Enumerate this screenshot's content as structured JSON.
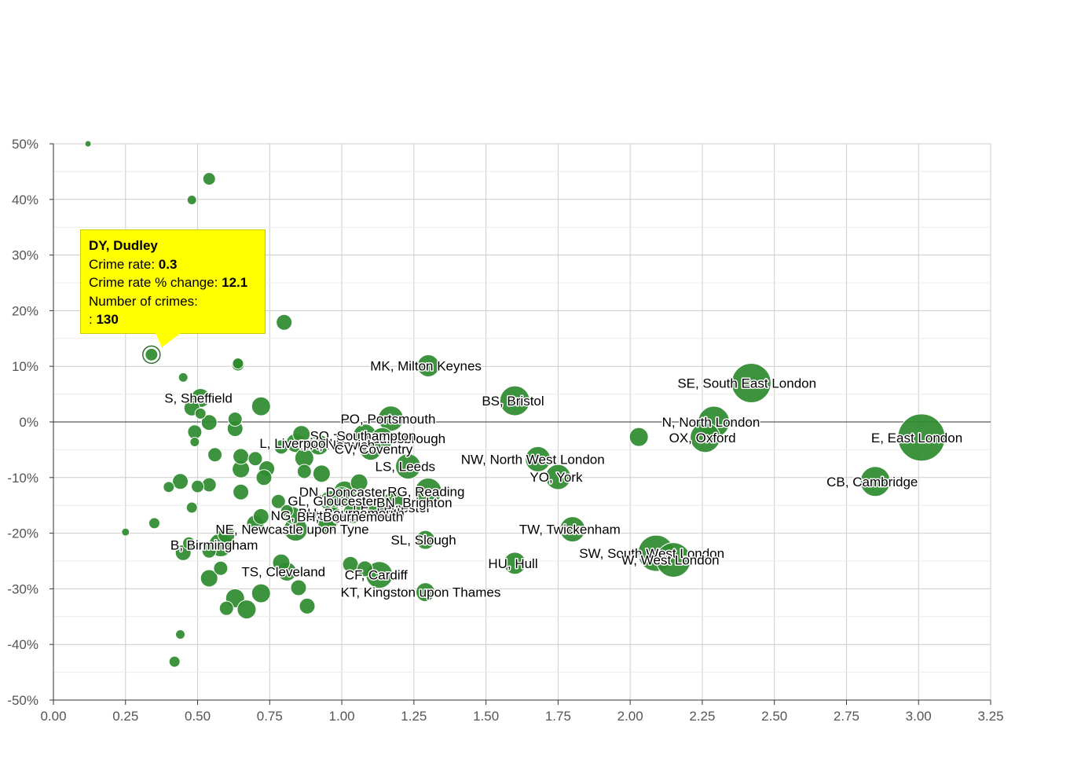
{
  "chart_data": {
    "type": "scatter",
    "title": "",
    "xlabel": "",
    "ylabel": "",
    "xlim": [
      0,
      3.25
    ],
    "ylim": [
      -50,
      50
    ],
    "x_ticks": [
      "0.00",
      "0.25",
      "0.50",
      "0.75",
      "1.00",
      "1.25",
      "1.50",
      "1.75",
      "2.00",
      "2.25",
      "2.50",
      "2.75",
      "3.00",
      "3.25"
    ],
    "y_ticks": [
      "50%",
      "40%",
      "30%",
      "20%",
      "10%",
      "0%",
      "-10%",
      "-20%",
      "-30%",
      "-40%",
      "-50%"
    ],
    "x_tick_values": [
      0,
      0.25,
      0.5,
      0.75,
      1,
      1.25,
      1.5,
      1.75,
      2,
      2.25,
      2.5,
      2.75,
      3,
      3.25
    ],
    "y_tick_values": [
      50,
      40,
      30,
      20,
      10,
      0,
      -10,
      -20,
      -30,
      -40,
      -50
    ],
    "grid": true,
    "point_color": "#2e8b2e",
    "tooltip_color": "#ffff00",
    "points": [
      {
        "x": 3.01,
        "y": -2.8,
        "s": 30,
        "label": "E, East London"
      },
      {
        "x": 2.42,
        "y": 7.0,
        "s": 25,
        "label": "SE, South East London"
      },
      {
        "x": 2.29,
        "y": 0.0,
        "s": 20,
        "label": "N, North London"
      },
      {
        "x": 2.26,
        "y": -2.8,
        "s": 19,
        "label": "OX, Oxford"
      },
      {
        "x": 2.85,
        "y": -10.7,
        "s": 19,
        "label": "CB, Cambridge"
      },
      {
        "x": 2.09,
        "y": -23.6,
        "s": 23,
        "label": "SW, South West London"
      },
      {
        "x": 2.15,
        "y": -24.8,
        "s": 22,
        "label": "W, West London"
      },
      {
        "x": 2.03,
        "y": -2.7,
        "s": 12,
        "label": ""
      },
      {
        "x": 1.6,
        "y": 3.8,
        "s": 19,
        "label": "BS, Bristol"
      },
      {
        "x": 1.68,
        "y": -6.7,
        "s": 16,
        "label": "NW, North West London"
      },
      {
        "x": 1.75,
        "y": -9.9,
        "s": 16,
        "label": "YO, York"
      },
      {
        "x": 1.8,
        "y": -19.3,
        "s": 16,
        "label": "TW, Twickenham"
      },
      {
        "x": 1.6,
        "y": -25.4,
        "s": 14,
        "label": "HU, Hull"
      },
      {
        "x": 1.3,
        "y": 10.1,
        "s": 14,
        "label": "MK, Milton Keynes"
      },
      {
        "x": 1.17,
        "y": 0.6,
        "s": 16,
        "label": "PO, Portsmouth"
      },
      {
        "x": 1.3,
        "y": -12.5,
        "s": 17,
        "label": "RG, Reading"
      },
      {
        "x": 1.23,
        "y": -8.0,
        "s": 16,
        "label": "LS, Leeds"
      },
      {
        "x": 1.18,
        "y": -14.5,
        "s": 14,
        "label": "BN, Brighton"
      },
      {
        "x": 1.08,
        "y": -2.5,
        "s": 15,
        "label": "SO, Southampton"
      },
      {
        "x": 1.14,
        "y": -3.0,
        "s": 14,
        "label": "TS, Middlesbrough"
      },
      {
        "x": 1.1,
        "y": -4.9,
        "s": 14,
        "label": "CV, Coventry"
      },
      {
        "x": 1.29,
        "y": -21.2,
        "s": 12,
        "label": "SL, Slough"
      },
      {
        "x": 1.13,
        "y": -27.5,
        "s": 17,
        "label": "CF, Cardiff"
      },
      {
        "x": 1.29,
        "y": -30.6,
        "s": 12,
        "label": "KT, Kingston upon Thames"
      },
      {
        "x": 1.01,
        "y": -12.6,
        "s": 14,
        "label": "DN, Doncaster"
      },
      {
        "x": 1.06,
        "y": -10.9,
        "s": 11,
        "label": ""
      },
      {
        "x": 1.0,
        "y": -13.5,
        "s": 13,
        "label": ""
      },
      {
        "x": 1.12,
        "y": -15.4,
        "s": 13,
        "label": "LE, Leicester"
      },
      {
        "x": 0.96,
        "y": -14.2,
        "s": 13,
        "label": "GL, Gloucester"
      },
      {
        "x": 1.04,
        "y": -16.4,
        "s": 13,
        "label": "BH, Bournemouth"
      },
      {
        "x": 0.97,
        "y": -17.0,
        "s": 12,
        "label": "BH, Bournemouth"
      },
      {
        "x": 0.95,
        "y": -18.2,
        "s": 12,
        "label": ""
      },
      {
        "x": 0.84,
        "y": -19.3,
        "s": 15,
        "label": "NE, Newcastle upon Tyne"
      },
      {
        "x": 0.83,
        "y": -16.8,
        "s": 11,
        "label": "NG, Nottingham"
      },
      {
        "x": 0.92,
        "y": -4.1,
        "s": 13,
        "label": "NR, Norwich"
      },
      {
        "x": 0.86,
        "y": -2.2,
        "s": 11,
        "label": ""
      },
      {
        "x": 0.84,
        "y": -3.8,
        "s": 12,
        "label": "L, Liverpool"
      },
      {
        "x": 0.87,
        "y": -6.5,
        "s": 12,
        "label": ""
      },
      {
        "x": 0.93,
        "y": -9.3,
        "s": 11,
        "label": ""
      },
      {
        "x": 0.87,
        "y": -8.9,
        "s": 9,
        "label": ""
      },
      {
        "x": 0.79,
        "y": -4.5,
        "s": 9,
        "label": ""
      },
      {
        "x": 0.81,
        "y": -16.0,
        "s": 8,
        "label": ""
      },
      {
        "x": 0.78,
        "y": -14.3,
        "s": 9,
        "label": ""
      },
      {
        "x": 0.72,
        "y": 2.8,
        "s": 12,
        "label": ""
      },
      {
        "x": 0.8,
        "y": 17.9,
        "s": 10,
        "label": ""
      },
      {
        "x": 0.74,
        "y": -8.4,
        "s": 10,
        "label": ""
      },
      {
        "x": 0.73,
        "y": -10.0,
        "s": 10,
        "label": ""
      },
      {
        "x": 0.7,
        "y": -6.6,
        "s": 9,
        "label": ""
      },
      {
        "x": 0.65,
        "y": -6.2,
        "s": 10,
        "label": ""
      },
      {
        "x": 0.65,
        "y": -8.5,
        "s": 11,
        "label": ""
      },
      {
        "x": 0.65,
        "y": -12.6,
        "s": 10,
        "label": ""
      },
      {
        "x": 0.72,
        "y": -17.0,
        "s": 10,
        "label": ""
      },
      {
        "x": 0.7,
        "y": -18.3,
        "s": 11,
        "label": ""
      },
      {
        "x": 0.64,
        "y": 10.3,
        "s": 8,
        "label": ""
      },
      {
        "x": 0.64,
        "y": 10.5,
        "s": 7,
        "label": ""
      },
      {
        "x": 0.63,
        "y": 0.5,
        "s": 9,
        "label": ""
      },
      {
        "x": 0.63,
        "y": -1.2,
        "s": 10,
        "label": ""
      },
      {
        "x": 0.56,
        "y": -5.9,
        "s": 9,
        "label": ""
      },
      {
        "x": 0.54,
        "y": -0.1,
        "s": 10,
        "label": ""
      },
      {
        "x": 0.54,
        "y": 43.7,
        "s": 8,
        "label": ""
      },
      {
        "x": 0.48,
        "y": 39.9,
        "s": 6,
        "label": ""
      },
      {
        "x": 0.51,
        "y": 4.3,
        "s": 12,
        "label": "S, Sheffield"
      },
      {
        "x": 0.48,
        "y": 2.5,
        "s": 10,
        "label": ""
      },
      {
        "x": 0.51,
        "y": 1.5,
        "s": 7,
        "label": ""
      },
      {
        "x": 0.49,
        "y": -1.8,
        "s": 9,
        "label": ""
      },
      {
        "x": 0.49,
        "y": -3.6,
        "s": 6,
        "label": ""
      },
      {
        "x": 0.45,
        "y": 8.0,
        "s": 6,
        "label": ""
      },
      {
        "x": 0.54,
        "y": -11.3,
        "s": 9,
        "label": ""
      },
      {
        "x": 0.5,
        "y": -11.6,
        "s": 8,
        "label": ""
      },
      {
        "x": 0.44,
        "y": -10.7,
        "s": 10,
        "label": ""
      },
      {
        "x": 0.4,
        "y": -11.7,
        "s": 7,
        "label": ""
      },
      {
        "x": 0.48,
        "y": -15.4,
        "s": 7,
        "label": ""
      },
      {
        "x": 0.35,
        "y": -18.2,
        "s": 7,
        "label": ""
      },
      {
        "x": 0.25,
        "y": -19.8,
        "s": 5,
        "label": ""
      },
      {
        "x": 0.12,
        "y": 50.0,
        "s": 4,
        "label": ""
      },
      {
        "x": 0.34,
        "y": 12.1,
        "s": 8,
        "label": "",
        "highlight": true
      },
      {
        "x": 0.58,
        "y": -22.1,
        "s": 15,
        "label": "B, Birmingham"
      },
      {
        "x": 0.6,
        "y": -20.2,
        "s": 11,
        "label": ""
      },
      {
        "x": 0.54,
        "y": -23.2,
        "s": 9,
        "label": ""
      },
      {
        "x": 0.47,
        "y": -21.8,
        "s": 8,
        "label": ""
      },
      {
        "x": 0.45,
        "y": -23.5,
        "s": 10,
        "label": ""
      },
      {
        "x": 0.58,
        "y": -26.3,
        "s": 9,
        "label": ""
      },
      {
        "x": 0.54,
        "y": -28.1,
        "s": 11,
        "label": ""
      },
      {
        "x": 0.63,
        "y": -31.7,
        "s": 12,
        "label": ""
      },
      {
        "x": 0.6,
        "y": -33.5,
        "s": 9,
        "label": ""
      },
      {
        "x": 0.67,
        "y": -33.7,
        "s": 12,
        "label": ""
      },
      {
        "x": 0.72,
        "y": -30.8,
        "s": 12,
        "label": ""
      },
      {
        "x": 0.79,
        "y": -25.3,
        "s": 11,
        "label": ""
      },
      {
        "x": 0.81,
        "y": -26.9,
        "s": 12,
        "label": "TS, Cleveland"
      },
      {
        "x": 0.85,
        "y": -29.8,
        "s": 10,
        "label": ""
      },
      {
        "x": 0.88,
        "y": -33.1,
        "s": 10,
        "label": ""
      },
      {
        "x": 1.03,
        "y": -25.6,
        "s": 10,
        "label": ""
      },
      {
        "x": 1.08,
        "y": -26.4,
        "s": 10,
        "label": ""
      },
      {
        "x": 0.44,
        "y": -38.2,
        "s": 6,
        "label": ""
      },
      {
        "x": 0.42,
        "y": -43.1,
        "s": 7,
        "label": ""
      }
    ],
    "labels": [
      {
        "x": 1.3,
        "y": 10.1,
        "text": "MK, Milton Keynes",
        "dx": -74
      },
      {
        "x": 2.42,
        "y": 7.0,
        "text": "SE, South East London",
        "dx": -94
      },
      {
        "x": 1.6,
        "y": 3.8,
        "text": "BS, Bristol",
        "dx": -42
      },
      {
        "x": 0.51,
        "y": 4.3,
        "text": "S, Sheffield",
        "dx": -46
      },
      {
        "x": 1.17,
        "y": 0.6,
        "text": "PO, Portsmouth",
        "dx": -64
      },
      {
        "x": 2.29,
        "y": 0.0,
        "text": "N, North London",
        "dx": -66
      },
      {
        "x": 1.14,
        "y": -3.0,
        "text": "TS, Middlesbrough",
        "dx": -62
      },
      {
        "x": 1.08,
        "y": -2.5,
        "text": "SO, Southampton",
        "dx": -70
      },
      {
        "x": 3.01,
        "y": -2.8,
        "text": "E, East London",
        "dx": -64
      },
      {
        "x": 2.26,
        "y": -2.8,
        "text": "OX, Oxford",
        "dx": -46
      },
      {
        "x": 0.92,
        "y": -4.1,
        "text": "NR, Norwich",
        "dx": -24
      },
      {
        "x": 0.84,
        "y": -3.8,
        "text": "L, Liverpool",
        "dx": -46
      },
      {
        "x": 1.1,
        "y": -4.9,
        "text": "CV, Coventry",
        "dx": -46
      },
      {
        "x": 1.68,
        "y": -6.7,
        "text": "NW, North West London",
        "dx": -98
      },
      {
        "x": 1.23,
        "y": -8.0,
        "text": "LS, Leeds",
        "dx": -42
      },
      {
        "x": 1.75,
        "y": -9.9,
        "text": "YO, York",
        "dx": -36
      },
      {
        "x": 2.85,
        "y": -10.7,
        "text": "CB, Cambridge",
        "dx": -62
      },
      {
        "x": 1.01,
        "y": -12.6,
        "text": "DN, Doncaster",
        "dx": -58
      },
      {
        "x": 1.3,
        "y": -12.5,
        "text": "RG, Reading",
        "dx": -52
      },
      {
        "x": 1.12,
        "y": -15.4,
        "text": "LE, Leicester",
        "dx": -30
      },
      {
        "x": 0.96,
        "y": -14.2,
        "text": "GL, Gloucester",
        "dx": -54
      },
      {
        "x": 1.18,
        "y": -14.5,
        "text": "BN, Brighton",
        "dx": -22
      },
      {
        "x": 0.83,
        "y": -16.8,
        "text": "NG, Nottingham",
        "dx": -28
      },
      {
        "x": 1.04,
        "y": -16.4,
        "text": "BH, Bournemouth",
        "dx": -70
      },
      {
        "x": 0.97,
        "y": -17.0,
        "text": "BH, Bournemouth",
        "dx": -46
      },
      {
        "x": 0.84,
        "y": -19.3,
        "text": "NE, Newcastle upon Tyne",
        "dx": -102
      },
      {
        "x": 1.8,
        "y": -19.3,
        "text": "TW, Twickenham",
        "dx": -68
      },
      {
        "x": 0.58,
        "y": -22.1,
        "text": "B, Birmingham",
        "dx": -64
      },
      {
        "x": 1.29,
        "y": -21.2,
        "text": "SL, Slough",
        "dx": -44
      },
      {
        "x": 2.09,
        "y": -23.6,
        "text": "SW, South West London",
        "dx": -98
      },
      {
        "x": 2.15,
        "y": -24.8,
        "text": "W, West London",
        "dx": -66
      },
      {
        "x": 1.6,
        "y": -25.4,
        "text": "HU, Hull",
        "dx": -34
      },
      {
        "x": 0.81,
        "y": -26.9,
        "text": "TS, Cleveland",
        "dx": -58
      },
      {
        "x": 1.13,
        "y": -27.5,
        "text": "CF, Cardiff",
        "dx": -44
      },
      {
        "x": 1.29,
        "y": -30.6,
        "text": "KT, Kingston upon Thames",
        "dx": -108
      }
    ]
  },
  "tooltip": {
    "title": "DY, Dudley",
    "crime_rate_label": "Crime rate: ",
    "crime_rate_value": "0.3",
    "change_label": "Crime rate % change: ",
    "change_value": "12.1",
    "crimes_label": "Number of crimes:",
    "crimes_prefix": ": ",
    "crimes_value": "130"
  }
}
